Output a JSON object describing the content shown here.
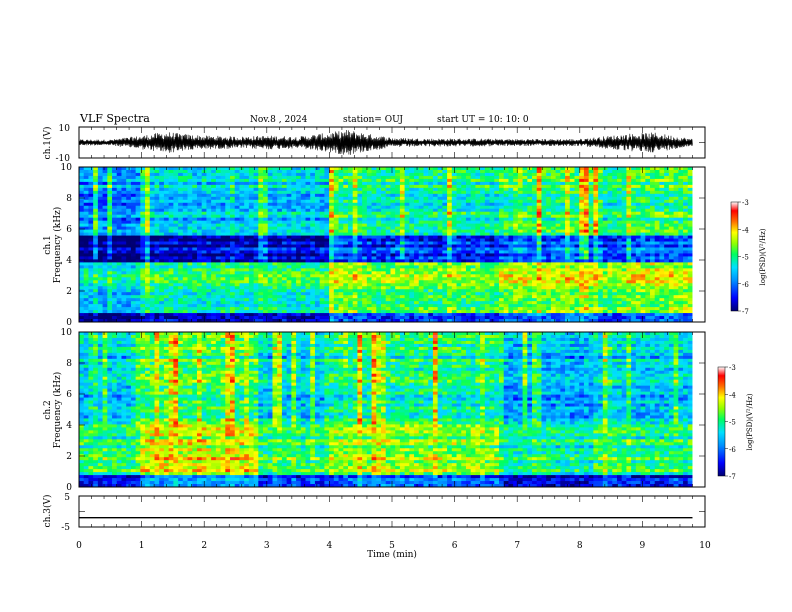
{
  "header": {
    "title": "VLF Spectra",
    "date": "Nov.8 , 2024",
    "station": "station= OUJ",
    "start_ut": "start UT =  10: 10: 0"
  },
  "colors": {
    "colormap": [
      "#000080",
      "#0000ff",
      "#0080ff",
      "#00d0ff",
      "#00ff80",
      "#80ff00",
      "#ffff00",
      "#ff8000",
      "#ff0000",
      "#ffffff"
    ]
  },
  "chart_data": [
    {
      "type": "line",
      "id": "ch1-waveform",
      "ylabel": "ch.1(V)",
      "ylim": [
        -10,
        10
      ],
      "yticks": [
        -10,
        10
      ],
      "xlim": [
        0,
        10
      ],
      "x": [
        0,
        0.5,
        1.0,
        1.4,
        1.6,
        2.0,
        2.6,
        3.0,
        3.5,
        4.0,
        4.3,
        4.6,
        5.0,
        5.5,
        6.0,
        7.0,
        8.0,
        8.8,
        9.2,
        9.8
      ],
      "amplitude_envelope": [
        1.5,
        1.5,
        3.5,
        5.5,
        4.5,
        3.5,
        3.0,
        3.5,
        3.0,
        5.0,
        6.5,
        4.5,
        2.5,
        2.0,
        2.0,
        1.8,
        1.8,
        4.5,
        5.0,
        1.8
      ]
    },
    {
      "type": "heatmap",
      "id": "ch1-spectrogram",
      "ylabel": "ch.1",
      "ylabel2": "Frequency (kHz)",
      "ylim": [
        0,
        10
      ],
      "yticks": [
        0,
        2,
        4,
        6,
        8,
        10
      ],
      "xlim": [
        0,
        10
      ],
      "colorbar": {
        "label": "log(PSD)(V²/Hz)",
        "range": [
          -7,
          -3
        ],
        "ticks": [
          -3,
          -4,
          -5,
          -6,
          -7
        ]
      },
      "segments_min": [
        0,
        0.95,
        2.9,
        4.0,
        4.6,
        6.7,
        8.25,
        8.8,
        9.8
      ],
      "bands_khz": [
        {
          "f_low": 0,
          "f_high": 0.5,
          "level": -6.5
        },
        {
          "f_low": 0.5,
          "f_high": 2.2,
          "level": -4.8
        },
        {
          "f_low": 2.2,
          "f_high": 3.8,
          "level": -4.6
        },
        {
          "f_low": 3.8,
          "f_high": 5.5,
          "level": -6.3
        },
        {
          "f_low": 5.5,
          "f_high": 10,
          "level": -5.2
        }
      ]
    },
    {
      "type": "heatmap",
      "id": "ch2-spectrogram",
      "ylabel": "ch.2",
      "ylabel2": "Frequency (kHz)",
      "ylim": [
        0,
        10
      ],
      "yticks": [
        0,
        2,
        4,
        6,
        8,
        10
      ],
      "xlim": [
        0,
        10
      ],
      "colorbar": {
        "label": "log(PSD)(V²/Hz)",
        "range": [
          -7,
          -3
        ],
        "ticks": [
          -3,
          -4,
          -5,
          -6,
          -7
        ]
      },
      "segments_min": [
        0,
        0.95,
        2.9,
        4.0,
        4.6,
        6.7,
        8.25,
        8.8,
        9.8
      ],
      "bands_khz": [
        {
          "f_low": 0,
          "f_high": 0.7,
          "level": -6.4
        },
        {
          "f_low": 0.7,
          "f_high": 2.5,
          "level": -4.7
        },
        {
          "f_low": 2.5,
          "f_high": 4.5,
          "level": -4.8
        },
        {
          "f_low": 4.5,
          "f_high": 6.7,
          "level": -5.4
        },
        {
          "f_low": 6.7,
          "f_high": 10,
          "level": -5.3
        }
      ]
    },
    {
      "type": "line",
      "id": "ch3-waveform",
      "ylabel": "ch.3(V)",
      "ylim": [
        -5,
        5
      ],
      "yticks": [
        -5,
        5
      ],
      "xlim": [
        0,
        10
      ],
      "x": [
        0,
        9.8
      ],
      "y": [
        -2,
        -2
      ]
    }
  ],
  "xaxis": {
    "label": "Time (min)",
    "ticks": [
      "0",
      "1",
      "2",
      "3",
      "4",
      "5",
      "6",
      "7",
      "8",
      "9",
      "10"
    ]
  }
}
